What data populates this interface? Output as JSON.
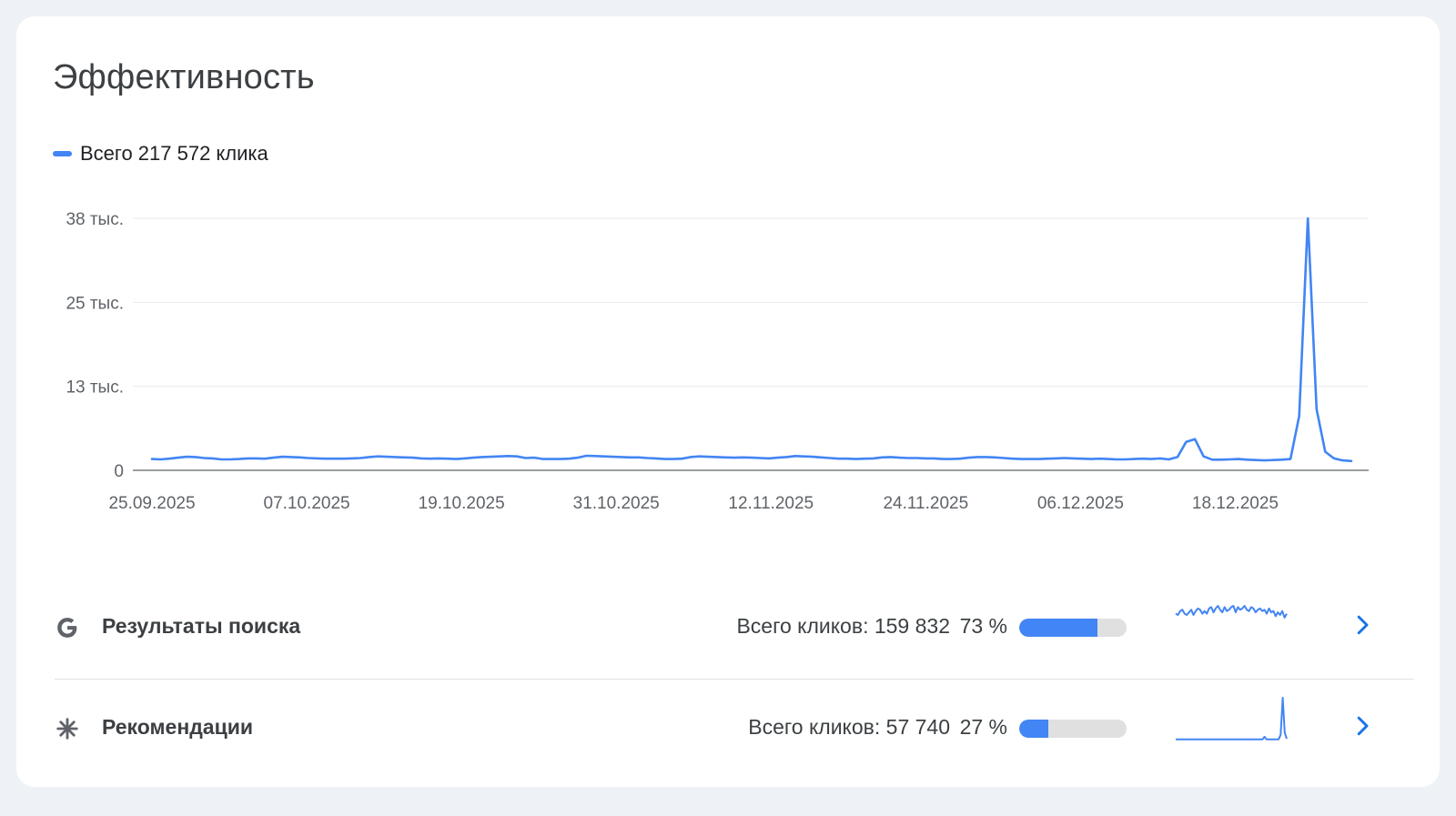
{
  "card": {
    "title": "Эффективность",
    "legend": {
      "text": "Всего 217 572 клика",
      "color": "#4285f4"
    }
  },
  "chart_data": {
    "type": "line",
    "series_color": "#4285f4",
    "y_ticks": [
      {
        "value": 0,
        "label": "0"
      },
      {
        "value": 12667,
        "label": "13 тыс."
      },
      {
        "value": 25333,
        "label": "25 тыс."
      },
      {
        "value": 38000,
        "label": "38 тыс."
      }
    ],
    "ylim": [
      0,
      38000
    ],
    "x_start": "25.09.2025",
    "x_end": "27.12.2025",
    "x_ticks": [
      "25.09.2025",
      "07.10.2025",
      "19.10.2025",
      "31.10.2025",
      "12.11.2025",
      "24.11.2025",
      "06.12.2025",
      "18.12.2025"
    ],
    "grid": true,
    "values": [
      1700,
      1650,
      1750,
      1900,
      2050,
      2000,
      1850,
      1800,
      1650,
      1650,
      1700,
      1800,
      1800,
      1750,
      1900,
      2050,
      2000,
      1950,
      1850,
      1800,
      1750,
      1750,
      1750,
      1800,
      1850,
      2000,
      2100,
      2050,
      2000,
      1950,
      1900,
      1800,
      1750,
      1800,
      1750,
      1700,
      1800,
      1900,
      2000,
      2050,
      2100,
      2150,
      2100,
      1850,
      1900,
      1700,
      1700,
      1700,
      1750,
      1900,
      2200,
      2150,
      2100,
      2050,
      2000,
      1950,
      1950,
      1850,
      1800,
      1700,
      1700,
      1750,
      2000,
      2100,
      2050,
      2000,
      1950,
      1900,
      1950,
      1900,
      1850,
      1800,
      1900,
      2000,
      2150,
      2100,
      2050,
      1950,
      1850,
      1750,
      1750,
      1700,
      1750,
      1800,
      1950,
      2000,
      1900,
      1850,
      1850,
      1800,
      1800,
      1700,
      1700,
      1750,
      1900,
      2000,
      2000,
      1950,
      1850,
      1750,
      1700,
      1700,
      1700,
      1750,
      1800,
      1850,
      1800,
      1750,
      1700,
      1750,
      1700,
      1650,
      1650,
      1700,
      1750,
      1700,
      1800,
      1650,
      2000,
      4300,
      4700,
      2100,
      1600,
      1600,
      1650,
      1700,
      1600,
      1550,
      1500,
      1550,
      1600,
      1700,
      8200,
      38000,
      9200,
      2800,
      1800,
      1500,
      1400
    ]
  },
  "rows": [
    {
      "icon": "google-g-icon",
      "label": "Результаты поиска",
      "total": "Всего кликов: 159 832",
      "percent": "73 %",
      "share": 0.73,
      "spark": [
        1050,
        1000,
        1150,
        1200,
        1050,
        1000,
        1100,
        1200,
        1000,
        1150,
        1250,
        1200,
        1050,
        1150,
        1050,
        1250,
        1300,
        1100,
        1250,
        1350,
        1200,
        1100,
        1300,
        1150,
        1200,
        1300,
        1350,
        1100,
        1300,
        1200,
        1250,
        1350,
        1200,
        1150,
        1300,
        1250,
        1100,
        1200,
        1250,
        1150,
        1200,
        1050,
        1250,
        1100,
        1150,
        950,
        1100,
        1000,
        1150,
        900,
        1050
      ]
    },
    {
      "icon": "asterisk-icon",
      "label": "Рекомендации",
      "total": "Всего кликов: 57 740",
      "percent": "27 %",
      "share": 0.27,
      "spark": [
        300,
        300,
        310,
        305,
        300,
        300,
        300,
        305,
        300,
        300,
        300,
        300,
        305,
        300,
        300,
        300,
        300,
        300,
        300,
        310,
        300,
        300,
        305,
        300,
        300,
        300,
        300,
        300,
        300,
        305,
        300,
        300,
        300,
        300,
        300,
        300,
        300,
        300,
        300,
        300,
        300,
        305,
        300,
        300,
        700,
        300,
        300,
        300,
        300,
        300,
        300,
        310,
        1000,
        6600,
        1300,
        400
      ]
    }
  ]
}
